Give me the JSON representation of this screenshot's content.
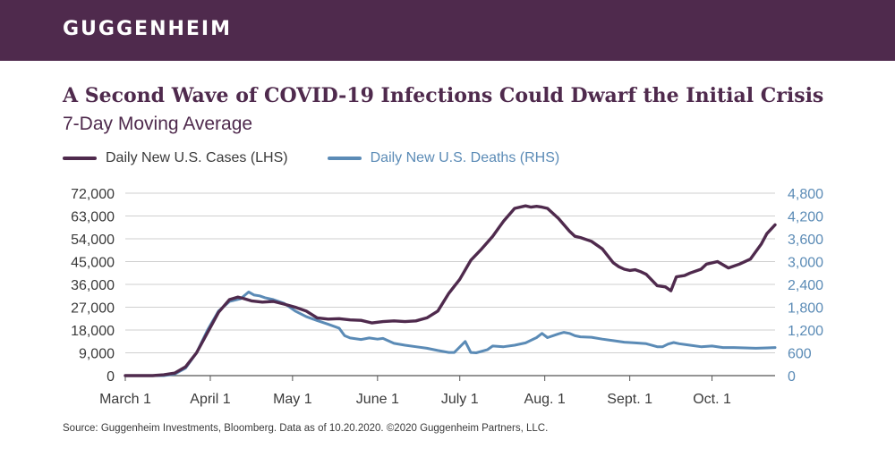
{
  "header": {
    "brand": "GUGGENHEIM"
  },
  "colors": {
    "banner": "#4f2a4d",
    "cases": "#4f2a4d",
    "deaths": "#5b8bb6"
  },
  "source": "Source: Guggenheim Investments, Bloomberg. Data as of 10.20.2020. ©2020 Guggenheim Partners, LLC.",
  "chart_data": {
    "type": "line",
    "title": "A Second Wave of COVID-19 Infections Could Dwarf the Initial Crisis",
    "subtitle": "7-Day Moving Average",
    "legend": [
      "Daily New U.S. Cases (LHS)",
      "Daily New U.S. Deaths (RHS)"
    ],
    "ylim_left": [
      0,
      72000
    ],
    "ylim_right": [
      0,
      4800
    ],
    "y_ticks_left": [
      "72,000",
      "63,000",
      "54,000",
      "45,000",
      "36,000",
      "27,000",
      "18,000",
      "9,000",
      "0"
    ],
    "y_ticks_right": [
      "4,800",
      "4,200",
      "3,600",
      "3,000",
      "2,400",
      "1,800",
      "1,200",
      "600",
      "0"
    ],
    "x_ticks": [
      {
        "label": "March 1",
        "day": 0
      },
      {
        "label": "April 1",
        "day": 31
      },
      {
        "label": "May 1",
        "day": 61
      },
      {
        "label": "June 1",
        "day": 92
      },
      {
        "label": "July 1",
        "day": 122
      },
      {
        "label": "Aug. 1",
        "day": 153
      },
      {
        "label": "Sept. 1",
        "day": 184
      },
      {
        "label": "Oct. 1",
        "day": 214
      }
    ],
    "x_range_days": [
      0,
      237
    ],
    "series": [
      {
        "name": "Daily New U.S. Cases (LHS)",
        "axis": "left",
        "x": [
          0,
          10,
          14,
          18,
          22,
          26,
          30,
          34,
          38,
          41,
          43,
          46,
          50,
          54,
          58,
          62,
          66,
          70,
          74,
          78,
          82,
          86,
          90,
          94,
          98,
          102,
          106,
          110,
          114,
          118,
          122,
          126,
          130,
          134,
          138,
          142,
          146,
          148,
          150,
          152,
          154,
          158,
          162,
          164,
          166,
          170,
          174,
          178,
          180,
          182,
          184,
          186,
          188,
          190,
          194,
          197,
          199,
          201,
          204,
          206,
          210,
          212,
          216,
          220,
          224,
          228,
          232,
          234,
          237
        ],
        "y": [
          0,
          0,
          300,
          1000,
          3500,
          9000,
          17000,
          25000,
          30000,
          31000,
          30500,
          29500,
          29000,
          29300,
          28200,
          27000,
          25500,
          22800,
          22300,
          22500,
          22000,
          21800,
          20800,
          21300,
          21600,
          21300,
          21600,
          22800,
          25500,
          32500,
          38000,
          45500,
          50000,
          55000,
          61000,
          66000,
          67000,
          66500,
          66800,
          66500,
          66000,
          62000,
          57000,
          55000,
          54500,
          53000,
          50000,
          44500,
          43000,
          42000,
          41500,
          41800,
          41000,
          40000,
          35500,
          35000,
          33500,
          39000,
          39500,
          40500,
          42000,
          44000,
          45000,
          42500,
          44000,
          46000,
          52000,
          56000,
          59500
        ]
      },
      {
        "name": "Daily New U.S. Deaths (RHS)",
        "axis": "right",
        "x": [
          0,
          14,
          18,
          22,
          26,
          30,
          34,
          38,
          42,
          45,
          47,
          49,
          51,
          54,
          58,
          62,
          66,
          70,
          74,
          78,
          80,
          82,
          86,
          89,
          92,
          94,
          98,
          102,
          106,
          110,
          114,
          118,
          120,
          124,
          126,
          128,
          132,
          134,
          138,
          142,
          146,
          150,
          152,
          154,
          158,
          160,
          162,
          164,
          166,
          170,
          174,
          178,
          182,
          186,
          190,
          194,
          196,
          198,
          200,
          202,
          206,
          210,
          214,
          218,
          222,
          226,
          230,
          234,
          237
        ],
        "y": [
          0,
          0,
          40,
          200,
          600,
          1200,
          1700,
          1950,
          2020,
          2200,
          2120,
          2100,
          2050,
          2000,
          1900,
          1700,
          1550,
          1450,
          1350,
          1250,
          1050,
          990,
          950,
          990,
          960,
          980,
          850,
          800,
          760,
          720,
          660,
          610,
          610,
          900,
          610,
          600,
          680,
          780,
          760,
          800,
          860,
          1000,
          1110,
          1000,
          1100,
          1140,
          1110,
          1050,
          1020,
          1010,
          960,
          920,
          880,
          860,
          840,
          760,
          760,
          830,
          870,
          840,
          800,
          760,
          780,
          740,
          740,
          730,
          720,
          730,
          740
        ]
      }
    ]
  }
}
